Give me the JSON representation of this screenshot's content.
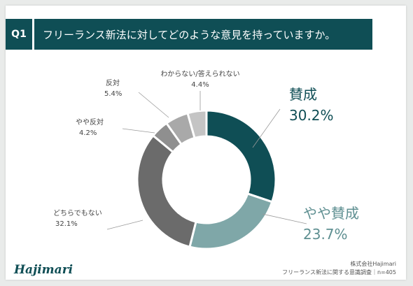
{
  "header": {
    "q_label": "Q1",
    "question": "フリーランス新法に対してどのような意見を持っていますか。"
  },
  "chart_data": {
    "type": "pie",
    "categories": [
      "賛成",
      "やや賛成",
      "どちらでもない",
      "やや反対",
      "反対",
      "わからない/答えられない"
    ],
    "values": [
      30.2,
      23.7,
      32.1,
      4.2,
      5.4,
      4.4
    ],
    "value_labels": [
      "30.2%",
      "23.7%",
      "32.1%",
      "4.2%",
      "5.4%",
      "4.4%"
    ],
    "colors": [
      "#0f4e55",
      "#7fa7a8",
      "#6b6b6b",
      "#8f8f8f",
      "#a9a9a9",
      "#c4c4c4"
    ],
    "style": "donut"
  },
  "footer": {
    "logo": "Hajimari",
    "company": "株式会社Hajimari",
    "survey": "フリーランス新法に関する意識調査｜n=405"
  }
}
